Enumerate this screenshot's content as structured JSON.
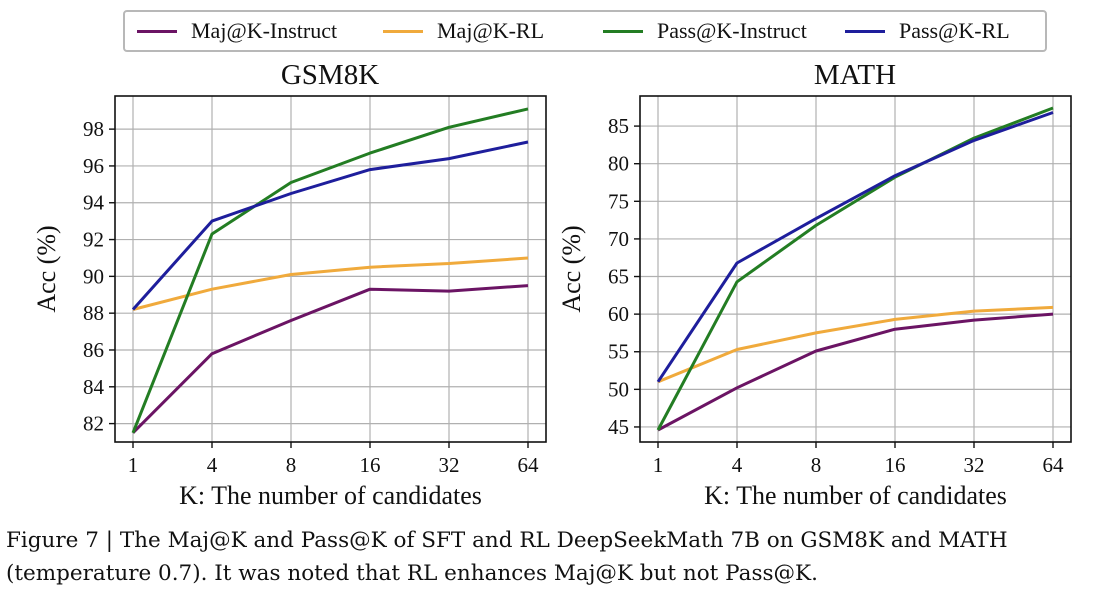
{
  "legend": [
    {
      "label": "Maj@K-Instruct",
      "color": "#6b1464"
    },
    {
      "label": "Maj@K-RL",
      "color": "#f0aa3c"
    },
    {
      "label": "Pass@K-Instruct",
      "color": "#237d23"
    },
    {
      "label": "Pass@K-RL",
      "color": "#1e1e9c"
    }
  ],
  "caption": {
    "line1": "Figure 7 | The Maj@K and Pass@K of SFT and RL DeepSeekMath 7B on GSM8K and MATH",
    "line2": "(temperature 0.7). It was noted that RL enhances Maj@K but not Pass@K."
  },
  "chart_data": [
    {
      "type": "line",
      "title": "GSM8K",
      "xlabel": "K: The number of candidates",
      "ylabel": "Acc (%)",
      "x": [
        "1",
        "4",
        "8",
        "16",
        "32",
        "64"
      ],
      "yticks": [
        82,
        84,
        86,
        88,
        90,
        92,
        94,
        96,
        98
      ],
      "ylim": [
        81,
        99.8
      ],
      "grid": true,
      "series": [
        {
          "name": "Maj@K-Instruct",
          "color": "#6b1464",
          "values": [
            81.5,
            85.8,
            87.6,
            89.3,
            89.2,
            89.5
          ]
        },
        {
          "name": "Maj@K-RL",
          "color": "#f0aa3c",
          "values": [
            88.2,
            89.3,
            90.1,
            90.5,
            90.7,
            91.0
          ]
        },
        {
          "name": "Pass@K-Instruct",
          "color": "#237d23",
          "values": [
            81.5,
            92.3,
            95.1,
            96.7,
            98.1,
            99.1
          ]
        },
        {
          "name": "Pass@K-RL",
          "color": "#1e1e9c",
          "values": [
            88.2,
            93.0,
            94.5,
            95.8,
            96.4,
            97.3
          ]
        }
      ]
    },
    {
      "type": "line",
      "title": "MATH",
      "xlabel": "K: The number of candidates",
      "ylabel": "Acc (%)",
      "x": [
        "1",
        "4",
        "8",
        "16",
        "32",
        "64"
      ],
      "yticks": [
        45,
        50,
        55,
        60,
        65,
        70,
        75,
        80,
        85
      ],
      "ylim": [
        43,
        89
      ],
      "grid": true,
      "series": [
        {
          "name": "Maj@K-Instruct",
          "color": "#6b1464",
          "values": [
            44.6,
            50.2,
            55.1,
            58.0,
            59.2,
            60.0
          ]
        },
        {
          "name": "Maj@K-RL",
          "color": "#f0aa3c",
          "values": [
            51.0,
            55.3,
            57.5,
            59.3,
            60.4,
            60.9
          ]
        },
        {
          "name": "Pass@K-Instruct",
          "color": "#237d23",
          "values": [
            44.6,
            64.3,
            71.8,
            78.2,
            83.4,
            87.4
          ]
        },
        {
          "name": "Pass@K-RL",
          "color": "#1e1e9c",
          "values": [
            51.0,
            66.8,
            72.7,
            78.4,
            83.1,
            86.8
          ]
        }
      ]
    }
  ]
}
